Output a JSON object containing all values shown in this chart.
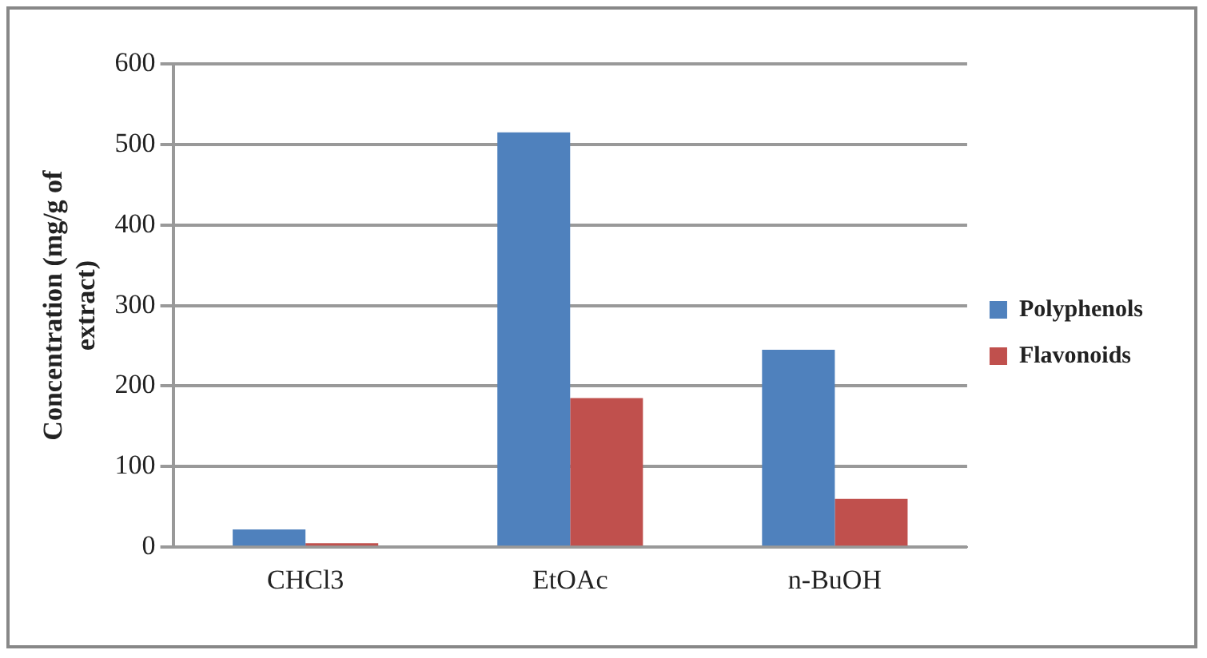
{
  "chart_data": {
    "type": "bar",
    "ylabel": "Concentration (mg/g of extract)",
    "categories": [
      "CHCl3",
      "EtOAc",
      "n-BuOH"
    ],
    "series": [
      {
        "name": "Polyphenols",
        "color": "#4f81bd",
        "values": [
          22,
          515,
          245
        ]
      },
      {
        "name": "Flavonoids",
        "color": "#c0504d",
        "values": [
          5,
          185,
          60
        ]
      }
    ],
    "ylim": [
      0,
      600
    ],
    "yticks": [
      0,
      100,
      200,
      300,
      400,
      500,
      600
    ],
    "grid": "y",
    "legend": "right"
  }
}
